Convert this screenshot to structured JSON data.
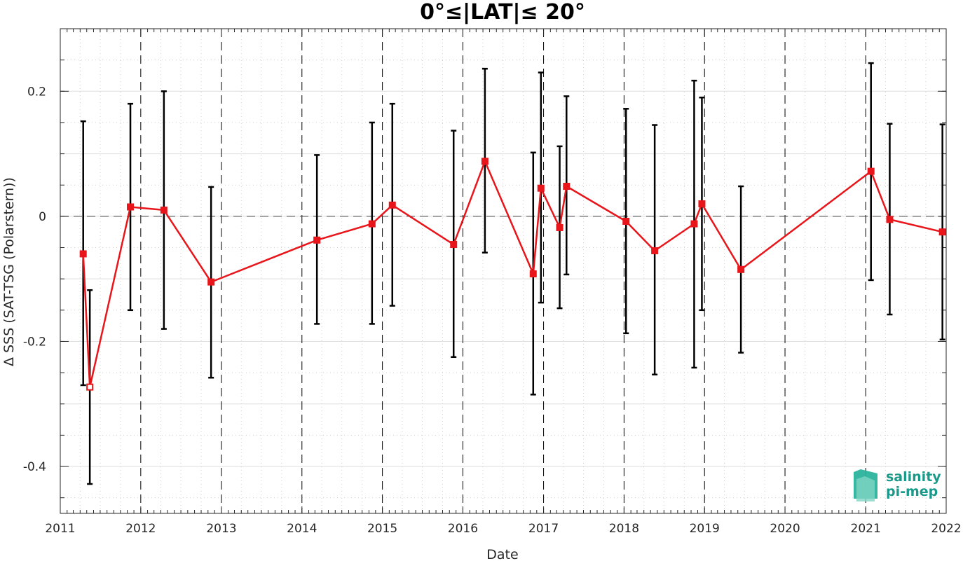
{
  "chart_data": {
    "type": "line",
    "title": "0°≤|LAT|≤ 20°",
    "xlabel": "Date",
    "ylabel": "Δ SSS (SAT-TSG (Polarstern))",
    "x_axis": {
      "kind": "date",
      "min": "2011-01-01",
      "max": "2022-01-01"
    },
    "ylim": [
      -0.475,
      0.3
    ],
    "x_ticks": [
      "2011",
      "2012",
      "2013",
      "2014",
      "2015",
      "2016",
      "2017",
      "2018",
      "2019",
      "2020",
      "2021",
      "2022"
    ],
    "y_ticks": [
      {
        "value": 0.2,
        "label": "0.2"
      },
      {
        "value": 0,
        "label": "0"
      },
      {
        "value": -0.2,
        "label": "-0.2"
      },
      {
        "value": -0.4,
        "label": "-0.4"
      }
    ],
    "grid": true,
    "zero_line": true,
    "year_boundary_lines": true,
    "series": [
      {
        "color": "#e8161b",
        "marker": "square",
        "points": [
          {
            "date": "2011-04-15",
            "y": -0.06,
            "err_low": -0.27,
            "err_high": 0.152,
            "filled": true
          },
          {
            "date": "2011-05-15",
            "y": -0.273,
            "err_low": -0.428,
            "err_high": -0.118,
            "filled": false
          },
          {
            "date": "2011-11-15",
            "y": 0.015,
            "err_low": -0.15,
            "err_high": 0.18,
            "filled": true
          },
          {
            "date": "2012-04-15",
            "y": 0.01,
            "err_low": -0.18,
            "err_high": 0.2,
            "filled": true
          },
          {
            "date": "2012-11-15",
            "y": -0.105,
            "err_low": -0.258,
            "err_high": 0.047,
            "filled": true
          },
          {
            "date": "2014-03-10",
            "y": -0.038,
            "err_low": -0.172,
            "err_high": 0.098,
            "filled": true
          },
          {
            "date": "2014-11-15",
            "y": -0.012,
            "err_low": -0.172,
            "err_high": 0.15,
            "filled": true
          },
          {
            "date": "2015-02-15",
            "y": 0.018,
            "err_low": -0.143,
            "err_high": 0.18,
            "filled": true
          },
          {
            "date": "2015-11-20",
            "y": -0.045,
            "err_low": -0.225,
            "err_high": 0.137,
            "filled": true
          },
          {
            "date": "2016-04-10",
            "y": 0.088,
            "err_low": -0.058,
            "err_high": 0.236,
            "filled": true
          },
          {
            "date": "2016-11-15",
            "y": -0.092,
            "err_low": -0.285,
            "err_high": 0.102,
            "filled": true
          },
          {
            "date": "2016-12-20",
            "y": 0.045,
            "err_low": -0.138,
            "err_high": 0.23,
            "filled": true
          },
          {
            "date": "2017-03-15",
            "y": -0.018,
            "err_low": -0.147,
            "err_high": 0.112,
            "filled": true
          },
          {
            "date": "2017-04-15",
            "y": 0.048,
            "err_low": -0.093,
            "err_high": 0.192,
            "filled": true
          },
          {
            "date": "2018-01-10",
            "y": -0.008,
            "err_low": -0.187,
            "err_high": 0.172,
            "filled": true
          },
          {
            "date": "2018-05-20",
            "y": -0.055,
            "err_low": -0.253,
            "err_high": 0.146,
            "filled": true
          },
          {
            "date": "2018-11-15",
            "y": -0.012,
            "err_low": -0.242,
            "err_high": 0.217,
            "filled": true
          },
          {
            "date": "2018-12-20",
            "y": 0.02,
            "err_low": -0.15,
            "err_high": 0.19,
            "filled": true
          },
          {
            "date": "2019-06-15",
            "y": -0.085,
            "err_low": -0.218,
            "err_high": 0.048,
            "filled": true
          },
          {
            "date": "2021-01-25",
            "y": 0.072,
            "err_low": -0.102,
            "err_high": 0.245,
            "filled": true
          },
          {
            "date": "2021-04-20",
            "y": -0.005,
            "err_low": -0.157,
            "err_high": 0.148,
            "filled": true
          },
          {
            "date": "2021-12-15",
            "y": -0.025,
            "err_low": -0.197,
            "err_high": 0.147,
            "filled": true
          }
        ]
      }
    ]
  },
  "logo": {
    "line1": "salinity",
    "line2": "pi-mep",
    "color": "#1a9a8a"
  }
}
